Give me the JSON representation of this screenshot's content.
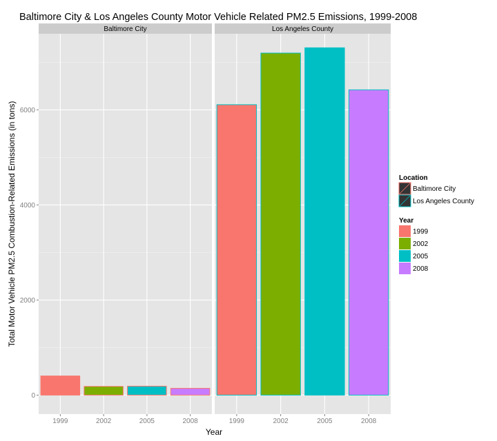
{
  "chart_data": {
    "type": "bar",
    "title": "Baltimore City & Los Angeles County Motor Vehicle Related PM2.5 Emissions, 1999-2008",
    "xlabel": "Year",
    "ylabel": "Total Motor Vehicle PM2.5 Combustion-Related Emissions (in tons)",
    "categories": [
      "1999",
      "2002",
      "2005",
      "2008"
    ],
    "ylim": [
      -400,
      7600
    ],
    "yticks": [
      0,
      2000,
      4000,
      6000
    ],
    "grid": true,
    "legend_position": "right",
    "panels": [
      {
        "name": "Baltimore City",
        "values": [
          403,
          183,
          188,
          143
        ]
      },
      {
        "name": "Los Angeles County",
        "values": [
          6109,
          7194,
          7305,
          6421
        ]
      }
    ],
    "year_colors": [
      "#F8766D",
      "#7CAE00",
      "#00BFC4",
      "#C77CFF"
    ],
    "location_colors": [
      "#F8766D",
      "#00BFC4"
    ],
    "legends": {
      "location": {
        "title": "Location",
        "entries": [
          "Baltimore City",
          "Los Angeles County"
        ]
      },
      "year": {
        "title": "Year",
        "entries": [
          "1999",
          "2002",
          "2005",
          "2008"
        ]
      }
    }
  }
}
